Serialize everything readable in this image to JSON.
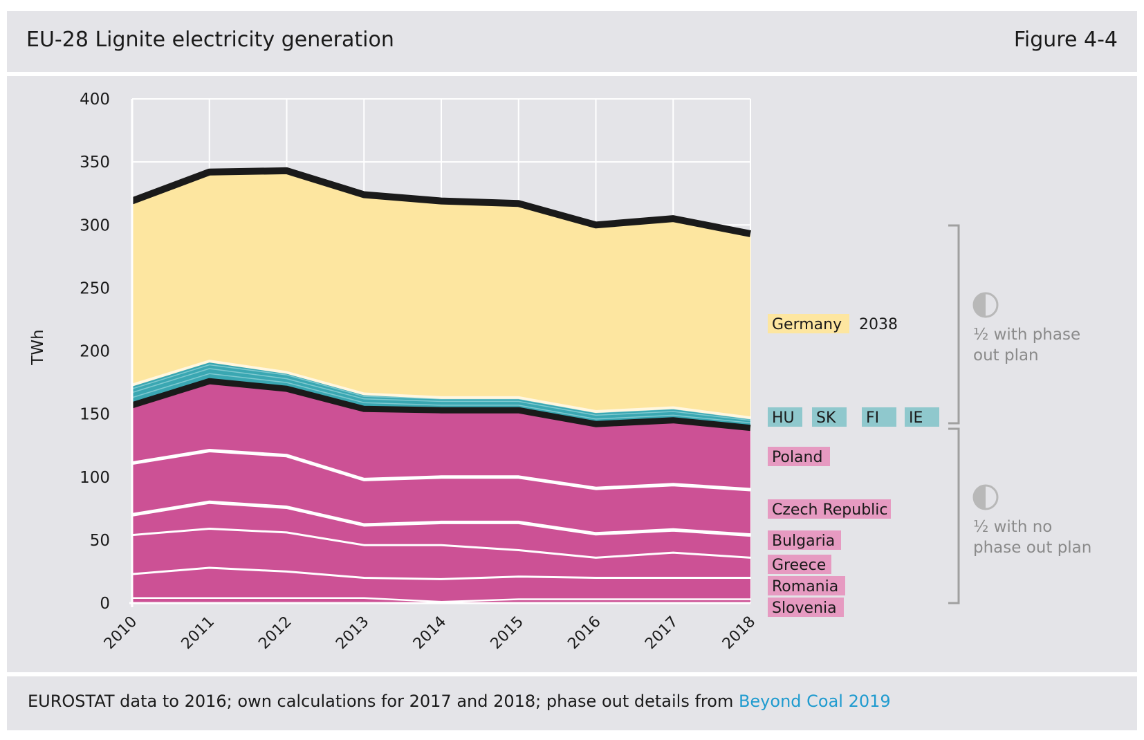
{
  "header": {
    "title": "EU-28 Lignite electricity generation",
    "figure": "Figure 4-4"
  },
  "footer": {
    "source_text": "EUROSTAT data to 2016; own calculations for 2017 and 2018; phase out details from ",
    "source_link": "Beyond Coal 2019"
  },
  "chart_data": {
    "type": "area",
    "stacked": true,
    "ylabel": "TWh",
    "ylim": [
      0,
      400
    ],
    "yticks": [
      0,
      50,
      100,
      150,
      200,
      250,
      300,
      350,
      400
    ],
    "categories": [
      "2010",
      "2011",
      "2012",
      "2013",
      "2014",
      "2015",
      "2016",
      "2017",
      "2018"
    ],
    "grid": true,
    "series": [
      {
        "name": "Slovenia",
        "group": "no_plan",
        "values": [
          4,
          4,
          4,
          4,
          1,
          3,
          3,
          3,
          3
        ]
      },
      {
        "name": "Romania",
        "group": "no_plan",
        "values": [
          19,
          24,
          21,
          16,
          18,
          18,
          17,
          17,
          17
        ]
      },
      {
        "name": "Greece",
        "group": "no_plan",
        "values": [
          31,
          31,
          31,
          26,
          27,
          21,
          16,
          20,
          16
        ]
      },
      {
        "name": "Bulgaria",
        "group": "no_plan",
        "values": [
          16,
          21,
          20,
          16,
          18,
          22,
          19,
          18,
          18
        ]
      },
      {
        "name": "Czech Republic",
        "group": "no_plan",
        "values": [
          41,
          41,
          41,
          36,
          36,
          36,
          36,
          36,
          36
        ]
      },
      {
        "name": "Poland",
        "group": "no_plan",
        "values": [
          46,
          55,
          53,
          56,
          53,
          53,
          51,
          51,
          49
        ]
      },
      {
        "name": "HU",
        "group": "plan",
        "values": [
          6,
          6,
          5,
          5,
          4,
          4,
          4,
          4,
          4
        ]
      },
      {
        "name": "SK",
        "group": "plan",
        "values": [
          4,
          4,
          3,
          3,
          3,
          3,
          3,
          3,
          2
        ]
      },
      {
        "name": "FI",
        "group": "plan",
        "values": [
          3,
          3,
          3,
          2,
          2,
          2,
          2,
          2,
          1
        ]
      },
      {
        "name": "IE",
        "group": "plan",
        "values": [
          3,
          3,
          2,
          2,
          1,
          1,
          1,
          1,
          1
        ]
      },
      {
        "name": "Germany",
        "group": "plan",
        "values": [
          146,
          150,
          160,
          158,
          156,
          154,
          148,
          150,
          146
        ]
      }
    ],
    "labels": {
      "germany": "Germany",
      "germany_year": "2038",
      "hu": "HU",
      "sk": "SK",
      "fi": "FI",
      "ie": "IE",
      "poland": "Poland",
      "czech": "Czech Republic",
      "bulgaria": "Bulgaria",
      "greece": "Greece",
      "romania": "Romania",
      "slovenia": "Slovenia"
    },
    "brackets": {
      "plan_text": [
        "½ with phase",
        "out plan"
      ],
      "noplan_text": [
        "½ with no",
        "phase out plan"
      ]
    },
    "colors": {
      "germany": "#fde6a0",
      "teal": "#3aa7b2",
      "magenta": "#cc5195",
      "magenta_label": "#e69ac1",
      "teal_label": "#8fc8cd",
      "black": "#1a1a1a",
      "grid": "#ffffff",
      "bracket": "#a0a0a0",
      "icon": "#b8b8b8"
    }
  }
}
